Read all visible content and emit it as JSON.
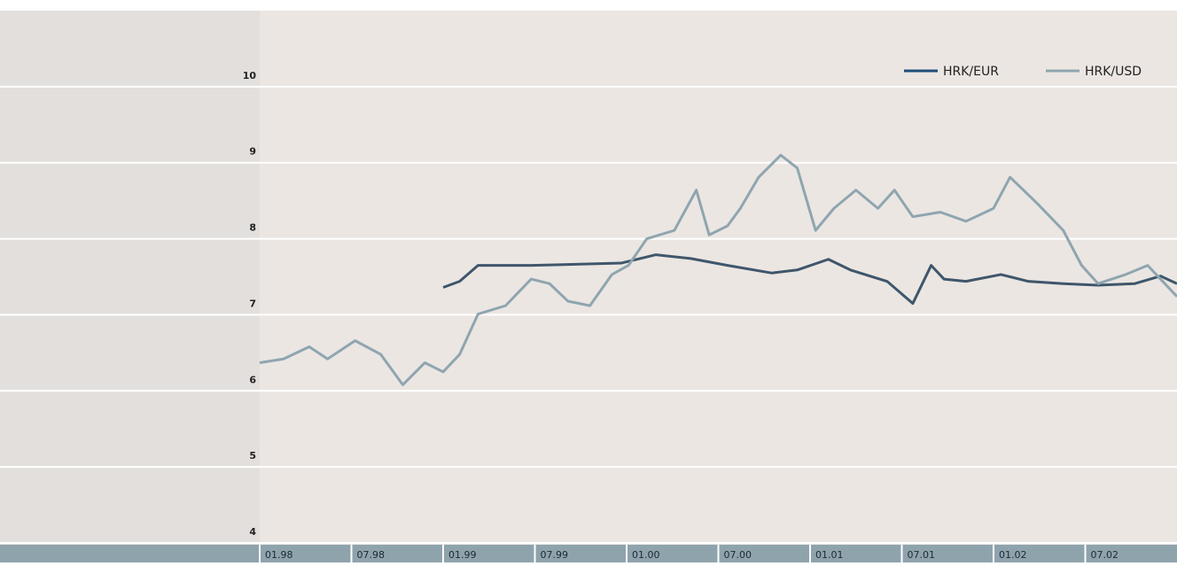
{
  "chart_data": {
    "type": "line",
    "series": [
      {
        "name": "HRK/EUR",
        "color": "#3f566b",
        "legend_color": "#1f4e79",
        "x": [
          1999.0,
          1999.09,
          1999.19,
          1999.48,
          1999.97,
          2000.16,
          2000.35,
          2000.55,
          2000.79,
          2000.93,
          2001.1,
          2001.22,
          2001.42,
          2001.56,
          2001.66,
          2001.73,
          2001.85,
          2002.04,
          2002.19,
          2002.38,
          2002.57,
          2002.77,
          2002.91,
          2003.0
        ],
        "values": [
          7.36,
          7.44,
          7.65,
          7.65,
          7.68,
          7.79,
          7.74,
          7.65,
          7.55,
          7.59,
          7.73,
          7.59,
          7.44,
          7.15,
          7.65,
          7.47,
          7.44,
          7.53,
          7.44,
          7.41,
          7.39,
          7.41,
          7.51,
          7.41
        ]
      },
      {
        "name": "HRK/USD",
        "color": "#8fa5b0",
        "legend_color": "#8fa5b0",
        "x": [
          1998.0,
          1998.13,
          1998.27,
          1998.37,
          1998.52,
          1998.66,
          1998.78,
          1998.9,
          1999.0,
          1999.09,
          1999.19,
          1999.34,
          1999.48,
          1999.58,
          1999.68,
          1999.8,
          1999.92,
          2000.01,
          2000.11,
          2000.26,
          2000.38,
          2000.45,
          2000.55,
          2000.62,
          2000.72,
          2000.84,
          2000.93,
          2001.03,
          2001.13,
          2001.25,
          2001.37,
          2001.46,
          2001.56,
          2001.71,
          2001.85,
          2002.0,
          2002.09,
          2002.24,
          2002.38,
          2002.48,
          2002.57,
          2002.72,
          2002.84,
          2002.91,
          2003.0
        ],
        "values": [
          6.37,
          6.42,
          6.58,
          6.42,
          6.66,
          6.48,
          6.08,
          6.37,
          6.25,
          6.48,
          7.01,
          7.12,
          7.47,
          7.41,
          7.18,
          7.12,
          7.53,
          7.65,
          8.0,
          8.11,
          8.64,
          8.05,
          8.17,
          8.4,
          8.81,
          9.1,
          8.93,
          8.11,
          8.4,
          8.64,
          8.4,
          8.64,
          8.29,
          8.35,
          8.23,
          8.4,
          8.81,
          8.46,
          8.11,
          7.65,
          7.41,
          7.53,
          7.65,
          7.47,
          7.24
        ]
      }
    ],
    "xlim": [
      1998,
      2003
    ],
    "xticks": [
      {
        "value": 1998,
        "label": "01.98"
      },
      {
        "value": 1998.5,
        "label": "07.98"
      },
      {
        "value": 1999,
        "label": "01.99"
      },
      {
        "value": 1999.5,
        "label": "07.99"
      },
      {
        "value": 2000,
        "label": "01.00"
      },
      {
        "value": 2000.5,
        "label": "07.00"
      },
      {
        "value": 2001,
        "label": "01.01"
      },
      {
        "value": 2001.5,
        "label": "07.01"
      },
      {
        "value": 2002,
        "label": "01.02"
      },
      {
        "value": 2002.5,
        "label": "07.02"
      }
    ],
    "ylim": [
      4,
      11
    ],
    "yticks": [
      4,
      5,
      6,
      7,
      8,
      9,
      10
    ],
    "grid": true,
    "legend": "top-right"
  }
}
